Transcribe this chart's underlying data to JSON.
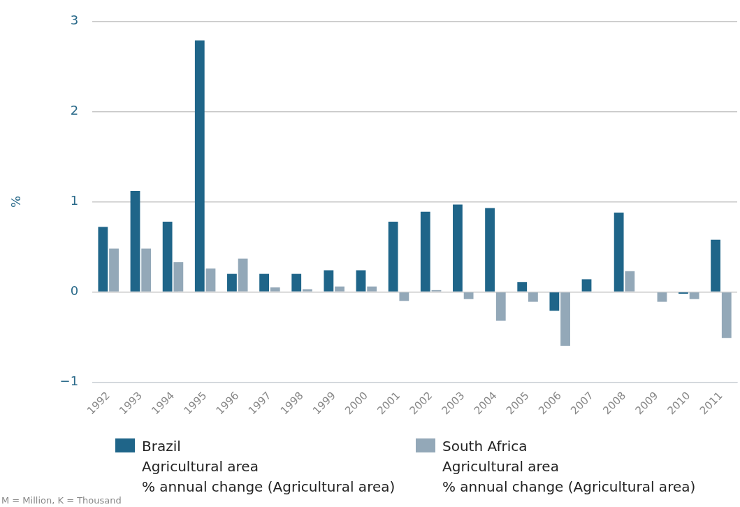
{
  "chart_data": {
    "type": "bar",
    "ylabel": "%",
    "categories": [
      "1992",
      "1993",
      "1994",
      "1995",
      "1996",
      "1997",
      "1998",
      "1999",
      "2000",
      "2001",
      "2002",
      "2003",
      "2004",
      "2005",
      "2006",
      "2007",
      "2008",
      "2009",
      "2010",
      "2011"
    ],
    "series": [
      {
        "name": "Brazil\nAgricultural area\n% annual change (Agricultural area)",
        "color": "#1f6589",
        "values": [
          0.72,
          1.12,
          0.78,
          2.79,
          0.2,
          0.2,
          0.2,
          0.24,
          0.24,
          0.78,
          0.89,
          0.97,
          0.93,
          0.11,
          -0.21,
          0.14,
          0.88,
          0,
          -0.02,
          0.58
        ]
      },
      {
        "name": "South Africa\nAgricultural area\n% annual change (Agricultural area)",
        "color": "#93a8b8",
        "values": [
          0.48,
          0.48,
          0.33,
          0.26,
          0.37,
          0.05,
          0.03,
          0.06,
          0.06,
          -0.1,
          0.02,
          -0.08,
          -0.32,
          -0.11,
          -0.6,
          0,
          0.23,
          -0.11,
          -0.08,
          -0.51
        ]
      }
    ],
    "ylim": [
      -1,
      3
    ],
    "yticks": [
      {
        "value": -1,
        "label": "−1"
      },
      0,
      1,
      2,
      3
    ],
    "grid": "y",
    "legend": "bottom",
    "annotations": [
      "M = Million, K = Thousand"
    ]
  }
}
